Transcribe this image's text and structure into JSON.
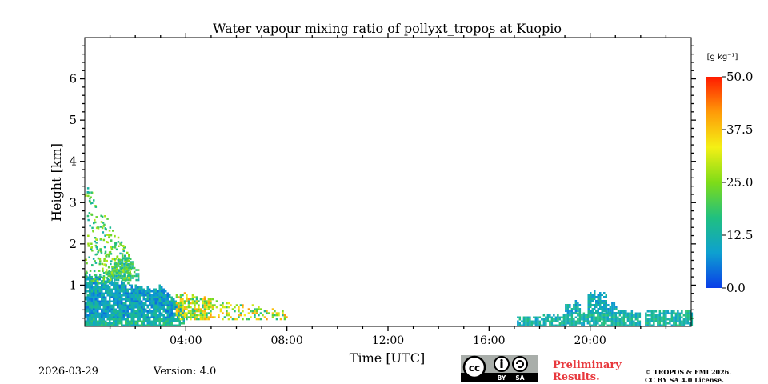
{
  "chart_data": {
    "type": "heatmap",
    "title": "Water vapour mixing ratio of pollyxt_tropos at Kuopio",
    "xlabel": "Time [UTC]",
    "ylabel": "Height [km]",
    "xlim_hours": [
      0,
      24
    ],
    "ylim_km": [
      0,
      7
    ],
    "x_ticks": [
      {
        "hour": 4,
        "label": "04:00"
      },
      {
        "hour": 8,
        "label": "08:00"
      },
      {
        "hour": 12,
        "label": "12:00"
      },
      {
        "hour": 16,
        "label": "16:00"
      },
      {
        "hour": 20,
        "label": "20:00"
      }
    ],
    "y_ticks": [
      {
        "km": 1,
        "label": "1"
      },
      {
        "km": 2,
        "label": "2"
      },
      {
        "km": 3,
        "label": "3"
      },
      {
        "km": 4,
        "label": "4"
      },
      {
        "km": 5,
        "label": "5"
      },
      {
        "km": 6,
        "label": "6"
      }
    ],
    "colorbar": {
      "unit_label": "[g kg⁻¹]",
      "min": 0.0,
      "max": 50.0,
      "ticks": [
        {
          "value": 0.0,
          "label": "0.0"
        },
        {
          "value": 12.5,
          "label": "12.5"
        },
        {
          "value": 25.0,
          "label": "25.0"
        },
        {
          "value": 37.5,
          "label": "37.5"
        },
        {
          "value": 50.0,
          "label": "50.0"
        }
      ],
      "colors": [
        "#0a3de8",
        "#0ea0d0",
        "#20c080",
        "#7edc18",
        "#f4f015",
        "#ff9a08",
        "#ff1a00"
      ]
    },
    "data_regions": [
      {
        "name": "morning-boundary-layer",
        "t_start": 0.0,
        "t_end": 3.9,
        "h_max": 1.2,
        "value_range": [
          4,
          16
        ]
      },
      {
        "name": "morning-aerosol-plume",
        "t_start": 0.9,
        "t_end": 2.1,
        "h_max": 1.7,
        "value_range": [
          10,
          22
        ]
      },
      {
        "name": "morning-upper-scatter",
        "t_start": 0.0,
        "t_end": 1.8,
        "h_max": 3.5,
        "value_range": [
          12,
          30
        ]
      },
      {
        "name": "decay-layer",
        "t_start": 3.6,
        "t_end": 8.0,
        "h_max": 0.8,
        "value_range": [
          15,
          42
        ]
      },
      {
        "name": "evening-surface-layer",
        "t_start": 17.1,
        "t_end": 24.0,
        "h_max": 0.35,
        "value_range": [
          8,
          18
        ]
      },
      {
        "name": "evening-convective-cells",
        "t_start": 19.0,
        "t_end": 21.4,
        "h_max": 0.9,
        "value_range": [
          6,
          16
        ]
      }
    ]
  },
  "footer": {
    "date": "2026-03-29",
    "version": "Version: 4.0",
    "license_badge": {
      "cc": "cc",
      "by": "BY",
      "sa": "SA"
    },
    "preliminary_line1": "Preliminary",
    "preliminary_line2": "Results.",
    "copyright_line1": "© TROPOS & FMI 2026.",
    "copyright_line2": "CC BY SA 4.0 License."
  }
}
